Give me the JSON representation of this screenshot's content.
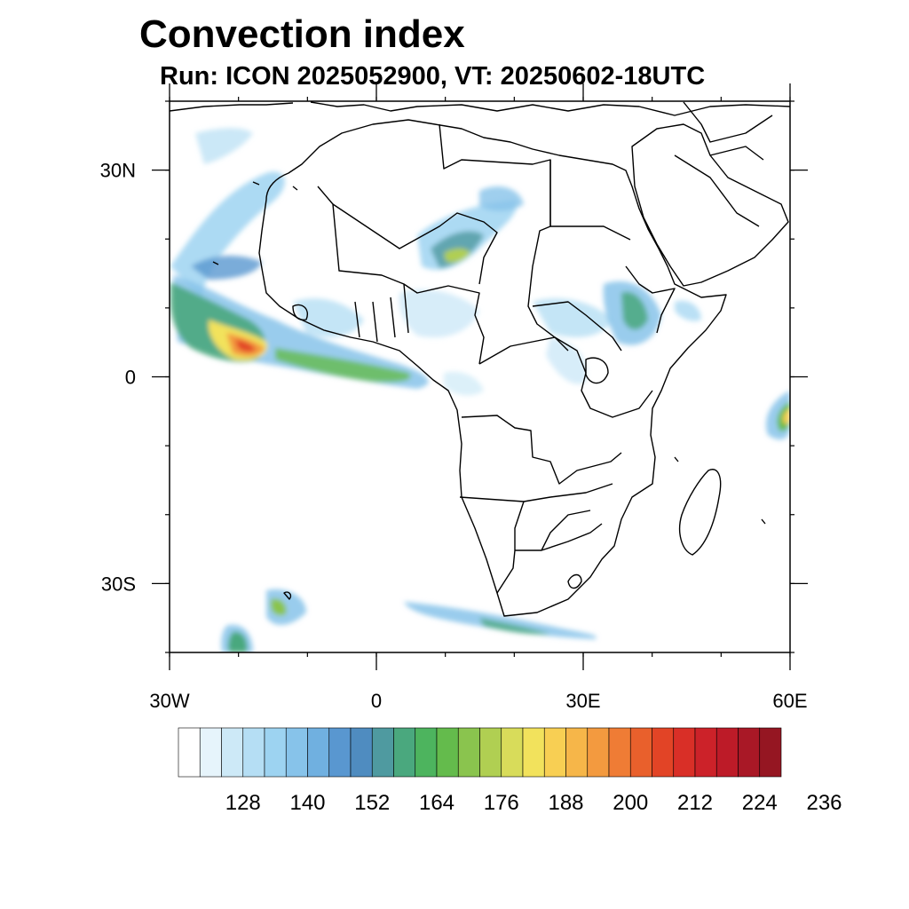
{
  "title": "Convection index",
  "subtitle": "Run: ICON 2025052900,  VT: 20250602-18UTC",
  "map": {
    "lon_range": [
      -30,
      60
    ],
    "lat_range": [
      -40,
      40
    ],
    "lat_ticks": [
      {
        "value": 30,
        "label": "30N"
      },
      {
        "value": 0,
        "label": "0"
      },
      {
        "value": -30,
        "label": "30S"
      }
    ],
    "lon_ticks": [
      {
        "value": -30,
        "label": "30W"
      },
      {
        "value": 0,
        "label": "0"
      },
      {
        "value": 30,
        "label": "30E"
      },
      {
        "value": 60,
        "label": "60E"
      }
    ]
  },
  "colorbar": {
    "colors": [
      "#ffffff",
      "#e6f4fb",
      "#cde9f7",
      "#b5def4",
      "#9dd3f1",
      "#87c3ea",
      "#70b0e0",
      "#5997d0",
      "#4f8cc0",
      "#4f9aa0",
      "#4aa87e",
      "#4db45e",
      "#64bb4c",
      "#8ac44e",
      "#b0cf52",
      "#d8dc5a",
      "#f2e25c",
      "#f8cf53",
      "#f6b649",
      "#f39a3f",
      "#ef7c35",
      "#e9602c",
      "#e24426",
      "#d92f27",
      "#cc2229",
      "#bd1b28",
      "#a91826",
      "#951622"
    ],
    "labels": [
      "128",
      "140",
      "152",
      "164",
      "176",
      "188",
      "200",
      "212",
      "224",
      "236"
    ]
  }
}
